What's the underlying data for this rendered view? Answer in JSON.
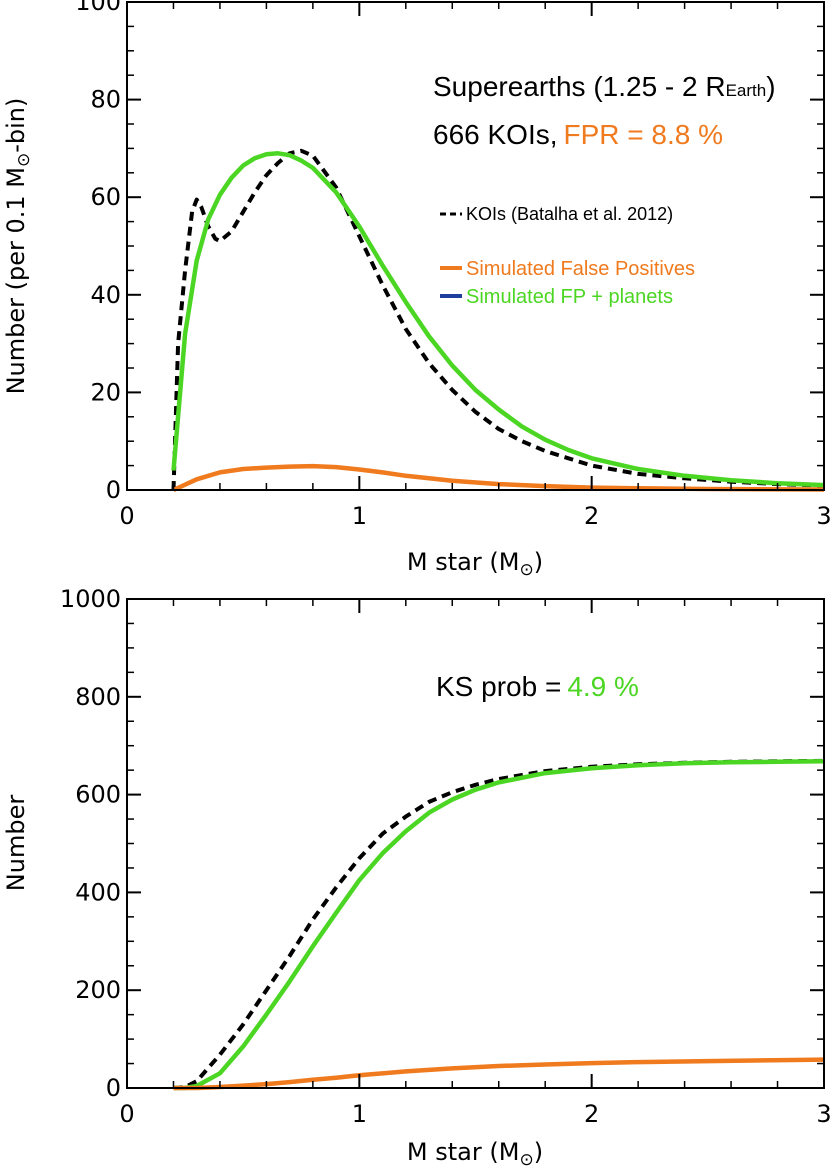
{
  "colors": {
    "kois": "#000000",
    "false_positives": "#F07A1E",
    "fp_plus_planets": "#4CD624",
    "legend_fp_plus_planets_swatch": "#1F3F9E",
    "fpr_text": "#F07A1E",
    "ks_value_text": "#4CD624"
  },
  "chart_data": [
    {
      "type": "line",
      "panel": "top",
      "annotation_title": "Superearths (1.25 - 2 R",
      "annotation_title_sub": "Earth",
      "annotation_title_end": ")",
      "annotation_count": "666 KOIs,",
      "annotation_fpr": "FPR = 8.8 %",
      "xlabel": "M star (M",
      "xlabel_end": ")",
      "ylabel_start": "Number (per 0.1 M",
      "ylabel_end": "-bin)",
      "xlim": [
        0,
        3
      ],
      "ylim": [
        0,
        100
      ],
      "xticks": [
        "0",
        "1",
        "2",
        "3"
      ],
      "yticks": [
        "0",
        "20",
        "40",
        "60",
        "80",
        "100"
      ],
      "legend": [
        {
          "label": "KOIs (Batalha et al. 2012)",
          "style": "dashed",
          "color": "#000000"
        },
        {
          "label": "Simulated False Positives",
          "style": "solid",
          "color": "#F07A1E"
        },
        {
          "label": "Simulated FP + planets",
          "style": "solid",
          "color": "#1F3F9E"
        }
      ],
      "series": [
        {
          "name": "KOIs (Batalha et al. 2012)",
          "style": "dashed",
          "x": [
            0.2,
            0.22,
            0.25,
            0.28,
            0.3,
            0.32,
            0.35,
            0.38,
            0.4,
            0.45,
            0.5,
            0.55,
            0.6,
            0.65,
            0.7,
            0.75,
            0.8,
            0.9,
            1.0,
            1.1,
            1.2,
            1.3,
            1.4,
            1.5,
            1.6,
            1.7,
            1.8,
            1.9,
            2.0,
            2.2,
            2.4,
            2.6,
            2.8,
            3.0
          ],
          "y": [
            0,
            30,
            45,
            57,
            59.5,
            58,
            54,
            51.5,
            51,
            53,
            57,
            61,
            64.5,
            67,
            69,
            69.5,
            68.5,
            62,
            52,
            42,
            33,
            26,
            20.5,
            16,
            12.5,
            10,
            8,
            6.5,
            5,
            3.3,
            2.4,
            1.7,
            1.2,
            0.9
          ]
        },
        {
          "name": "Simulated FP + planets",
          "style": "solid",
          "x": [
            0.2,
            0.25,
            0.3,
            0.35,
            0.4,
            0.45,
            0.5,
            0.55,
            0.6,
            0.65,
            0.7,
            0.75,
            0.8,
            0.9,
            1.0,
            1.1,
            1.2,
            1.3,
            1.4,
            1.5,
            1.6,
            1.7,
            1.8,
            1.9,
            2.0,
            2.2,
            2.4,
            2.6,
            2.8,
            3.0
          ],
          "y": [
            4,
            32,
            47,
            55.5,
            60.5,
            64,
            66.5,
            68,
            68.8,
            69,
            68.6,
            67.5,
            66,
            61,
            54,
            46,
            38.5,
            31.5,
            25.5,
            20.5,
            16.5,
            13,
            10.3,
            8.2,
            6.5,
            4.3,
            2.9,
            2,
            1.4,
            1
          ]
        },
        {
          "name": "Simulated False Positives",
          "style": "solid",
          "x": [
            0.2,
            0.3,
            0.4,
            0.5,
            0.6,
            0.7,
            0.8,
            0.9,
            1.0,
            1.1,
            1.2,
            1.4,
            1.6,
            1.8,
            2.0,
            2.2,
            2.5,
            3.0
          ],
          "y": [
            0,
            2.2,
            3.6,
            4.3,
            4.6,
            4.8,
            4.9,
            4.7,
            4.2,
            3.6,
            2.9,
            1.9,
            1.2,
            0.8,
            0.5,
            0.35,
            0.2,
            0.1
          ]
        }
      ]
    },
    {
      "type": "line",
      "panel": "bottom",
      "annotation_ks": "KS prob =",
      "annotation_ks_value": "4.9 %",
      "xlabel": "M star (M",
      "xlabel_end": ")",
      "ylabel": "Number",
      "xlim": [
        0,
        3
      ],
      "ylim": [
        0,
        1000
      ],
      "xticks": [
        "0",
        "1",
        "2",
        "3"
      ],
      "yticks": [
        "0",
        "200",
        "400",
        "600",
        "800",
        "1000"
      ],
      "series": [
        {
          "name": "KOIs (Batalha et al. 2012)",
          "style": "dashed",
          "x": [
            0.2,
            0.25,
            0.3,
            0.4,
            0.5,
            0.6,
            0.7,
            0.8,
            0.9,
            1.0,
            1.1,
            1.2,
            1.3,
            1.4,
            1.5,
            1.6,
            1.8,
            2.0,
            2.2,
            2.4,
            2.6,
            2.8,
            3.0
          ],
          "y": [
            0,
            2,
            14,
            68,
            130,
            200,
            270,
            345,
            410,
            470,
            520,
            555,
            585,
            605,
            620,
            632,
            648,
            657,
            662,
            665,
            667,
            668,
            669
          ]
        },
        {
          "name": "Simulated FP + planets",
          "style": "solid",
          "x": [
            0.2,
            0.25,
            0.3,
            0.4,
            0.5,
            0.6,
            0.7,
            0.8,
            0.9,
            1.0,
            1.1,
            1.2,
            1.3,
            1.4,
            1.5,
            1.6,
            1.8,
            2.0,
            2.2,
            2.4,
            2.6,
            2.8,
            3.0
          ],
          "y": [
            0,
            0,
            4,
            30,
            85,
            150,
            218,
            290,
            358,
            425,
            480,
            525,
            563,
            590,
            610,
            625,
            644,
            654,
            660,
            664,
            666,
            667,
            668
          ]
        },
        {
          "name": "Simulated False Positives",
          "style": "solid",
          "x": [
            0.2,
            0.3,
            0.4,
            0.5,
            0.6,
            0.7,
            0.8,
            0.9,
            1.0,
            1.2,
            1.4,
            1.6,
            1.8,
            2.0,
            2.2,
            2.5,
            3.0
          ],
          "y": [
            0,
            0,
            2,
            5,
            8,
            12,
            17,
            21,
            26,
            34,
            40,
            45,
            48,
            51,
            53,
            55,
            58
          ]
        }
      ]
    }
  ]
}
